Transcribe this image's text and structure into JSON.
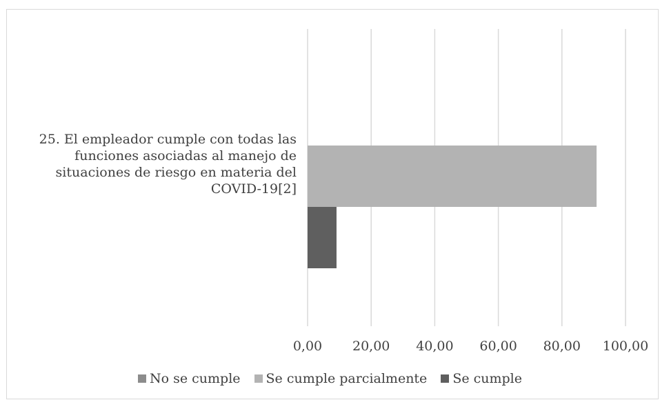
{
  "chart_data": {
    "type": "bar",
    "orientation": "horizontal",
    "categories": [
      "25.  El empleador cumple con todas las funciones asociadas al manejo de situaciones de riesgo en materia del COVID-19[2]"
    ],
    "series": [
      {
        "name": "No se cumple",
        "values": [
          0
        ],
        "color": "#8c8c8c"
      },
      {
        "name": "Se cumple parcialmente",
        "values": [
          90.9
        ],
        "color": "#b3b3b3"
      },
      {
        "name": "Se cumple",
        "values": [
          9.1
        ],
        "color": "#5f5f5f"
      }
    ],
    "xlim": [
      0,
      100
    ],
    "xticks": [
      "0,00",
      "20,00",
      "40,00",
      "60,00",
      "80,00",
      "100,00"
    ],
    "grid": true,
    "legend_position": "bottom"
  }
}
